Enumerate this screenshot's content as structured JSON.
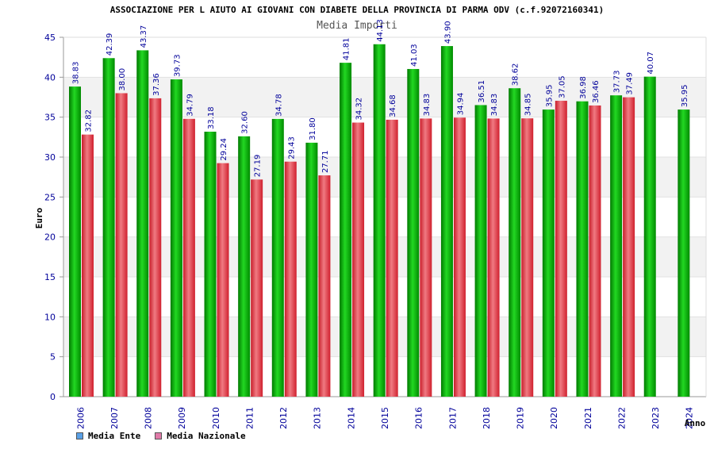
{
  "header": {
    "title": "ASSOCIAZIONE PER L AIUTO AI GIOVANI CON DIABETE DELLA PROVINCIA DI PARMA ODV (c.f.92072160341)",
    "subtitle": "Media Importi"
  },
  "colors": {
    "series1": "#00b000",
    "series2": "#e8303c",
    "axis_text": "#00009a",
    "label_text": "#00009a",
    "band": "#f2f2f2"
  },
  "legend": {
    "items": [
      {
        "label": "Media Ente",
        "color": "#5aa0e6"
      },
      {
        "label": "Media Nazionale",
        "color": "#e07aa8"
      }
    ]
  },
  "chart_data": {
    "type": "bar",
    "title": "ASSOCIAZIONE PER L AIUTO AI GIOVANI CON DIABETE DELLA PROVINCIA DI PARMA ODV (c.f.92072160341)",
    "subtitle": "Media Importi",
    "xlabel": "Anno",
    "ylabel": "Euro",
    "ylim": [
      0,
      45
    ],
    "yticks": [
      0,
      5,
      10,
      15,
      20,
      25,
      30,
      35,
      40,
      45
    ],
    "grid": "horizontal bands",
    "legend_position": "bottom-left",
    "categories": [
      "2006",
      "2007",
      "2008",
      "2009",
      "2010",
      "2011",
      "2012",
      "2013",
      "2014",
      "2015",
      "2016",
      "2017",
      "2018",
      "2019",
      "2020",
      "2021",
      "2022",
      "2023",
      "2024"
    ],
    "series": [
      {
        "name": "Media Ente",
        "values": [
          38.83,
          42.39,
          43.37,
          39.73,
          33.18,
          32.6,
          34.78,
          31.8,
          41.81,
          44.13,
          41.03,
          43.9,
          36.51,
          38.62,
          35.95,
          36.98,
          37.73,
          40.07,
          35.95
        ],
        "labels": [
          "38.83",
          "42.39",
          "43.37",
          "39.73",
          "33.18",
          "32.60",
          "34.78",
          "31.80",
          "41.81",
          "44.13",
          "41.03",
          "43.90",
          "36.51",
          "38.62",
          "35.95",
          "36.98",
          "37.73",
          "40.07",
          "35.95"
        ]
      },
      {
        "name": "Media Nazionale",
        "values": [
          32.82,
          38.0,
          37.36,
          34.79,
          29.24,
          27.19,
          29.43,
          27.71,
          34.32,
          34.68,
          34.83,
          34.94,
          34.83,
          34.85,
          37.05,
          36.46,
          37.49,
          null,
          null
        ],
        "labels": [
          "32.82",
          "38.00",
          "37.36",
          "34.79",
          "29.24",
          "27.19",
          "29.43",
          "27.71",
          "34.32",
          "34.68",
          "34.83",
          "34.94",
          "34.83",
          "34.85",
          "37.05",
          "36.46",
          "37.49",
          "",
          ""
        ]
      }
    ]
  }
}
